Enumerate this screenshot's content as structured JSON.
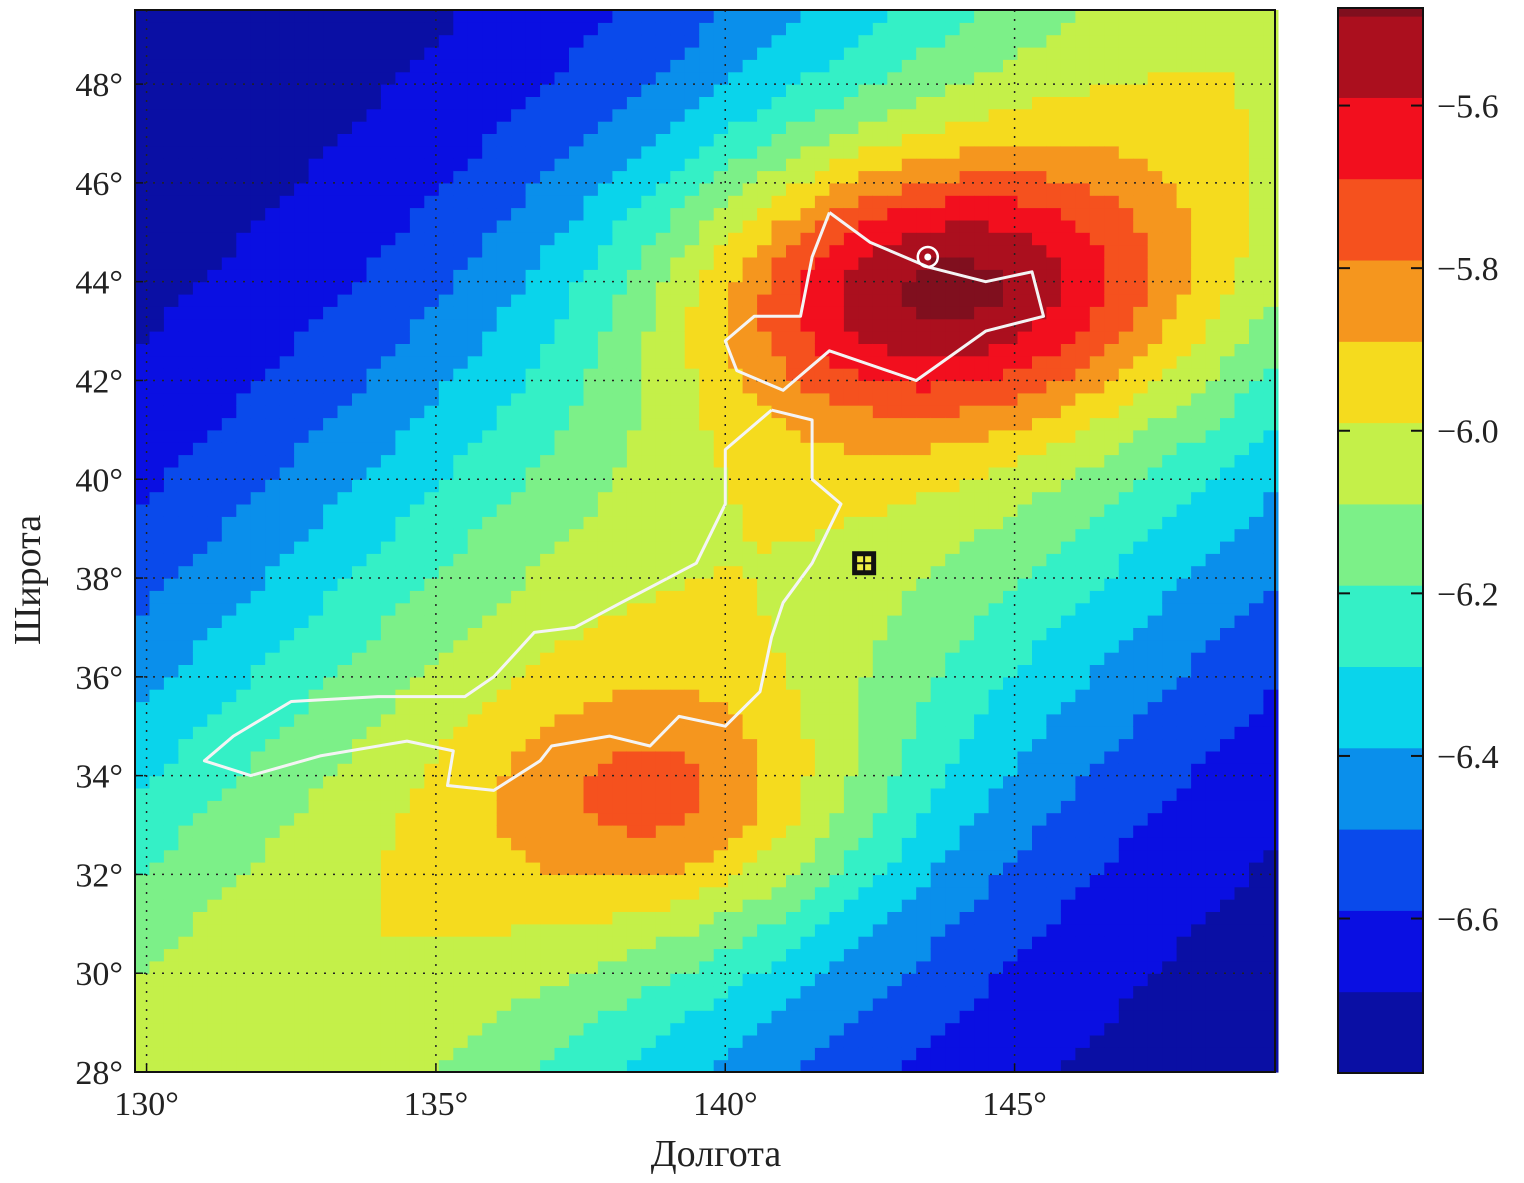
{
  "chart_data": {
    "type": "heatmap",
    "subtype": "filled-contour-map",
    "xlabel": "Долгота",
    "ylabel": "Широта",
    "xlim": [
      129.8,
      149.5
    ],
    "ylim": [
      28,
      49.5
    ],
    "grid": true,
    "xticks": [
      130,
      135,
      140,
      145
    ],
    "xtick_labels": [
      "130°",
      "135°",
      "140°",
      "145°"
    ],
    "yticks": [
      28,
      30,
      32,
      34,
      36,
      38,
      40,
      42,
      44,
      46,
      48
    ],
    "ytick_labels": [
      "28°",
      "30°",
      "32°",
      "34°",
      "36°",
      "38°",
      "40°",
      "42°",
      "44°",
      "46°",
      "48°"
    ],
    "colorbar": {
      "range": [
        -6.79,
        -5.48
      ],
      "ticks": [
        -5.6,
        -5.8,
        -6.0,
        -6.2,
        -6.4,
        -6.6
      ],
      "tick_labels": [
        "−5.6",
        "−5.8",
        "−6.0",
        "−6.2",
        "−6.4",
        "−6.6"
      ],
      "colormap": "jet",
      "level_step": 0.1
    },
    "field_model": {
      "base": -6.78,
      "ridge": {
        "through": [
          140,
          38
        ],
        "slope_lat_per_lon": 1.2,
        "amplitude": 0.78,
        "sigma_deg": 5.2
      },
      "peaks": [
        {
          "lon": 143.6,
          "lat": 43.9,
          "amplitude": 0.55,
          "sigma_lon": 3.0,
          "sigma_lat": 1.9
        },
        {
          "lon": 139.3,
          "lat": 33.3,
          "amplitude": 0.3,
          "sigma_lon": 2.3,
          "sigma_lat": 1.8
        }
      ]
    },
    "coastline": [
      [
        [
          141.8,
          45.4
        ],
        [
          142.5,
          44.8
        ],
        [
          143.5,
          44.3
        ],
        [
          144.5,
          44.0
        ],
        [
          145.3,
          44.2
        ],
        [
          145.5,
          43.3
        ],
        [
          144.5,
          43.0
        ],
        [
          143.3,
          42.0
        ],
        [
          141.8,
          42.6
        ],
        [
          141.0,
          41.8
        ],
        [
          140.2,
          42.2
        ],
        [
          140.0,
          42.8
        ],
        [
          140.5,
          43.3
        ],
        [
          141.3,
          43.3
        ],
        [
          141.5,
          44.5
        ],
        [
          141.8,
          45.4
        ]
      ],
      [
        [
          140.8,
          41.4
        ],
        [
          141.5,
          41.2
        ],
        [
          141.5,
          40.0
        ],
        [
          142.0,
          39.5
        ],
        [
          141.5,
          38.3
        ],
        [
          141.0,
          37.5
        ],
        [
          140.8,
          36.8
        ],
        [
          140.6,
          35.7
        ],
        [
          140.0,
          35.0
        ],
        [
          139.2,
          35.2
        ],
        [
          138.7,
          34.6
        ],
        [
          138.0,
          34.8
        ],
        [
          137.0,
          34.6
        ],
        [
          136.8,
          34.3
        ],
        [
          136.0,
          33.7
        ],
        [
          135.2,
          33.8
        ],
        [
          135.3,
          34.5
        ],
        [
          134.5,
          34.7
        ],
        [
          133.0,
          34.4
        ],
        [
          131.8,
          34.0
        ],
        [
          131.0,
          34.3
        ],
        [
          131.5,
          34.8
        ],
        [
          132.5,
          35.5
        ],
        [
          134.0,
          35.6
        ],
        [
          135.5,
          35.6
        ],
        [
          136.0,
          36.0
        ],
        [
          136.7,
          36.9
        ],
        [
          137.4,
          37.0
        ],
        [
          138.2,
          37.5
        ],
        [
          139.5,
          38.3
        ],
        [
          140.0,
          39.5
        ],
        [
          140.0,
          40.6
        ],
        [
          140.8,
          41.4
        ]
      ]
    ],
    "markers": [
      {
        "type": "square-epicenter",
        "lon": 142.4,
        "lat": 38.3
      },
      {
        "type": "circle-star",
        "lon": 143.5,
        "lat": 44.5
      }
    ]
  }
}
